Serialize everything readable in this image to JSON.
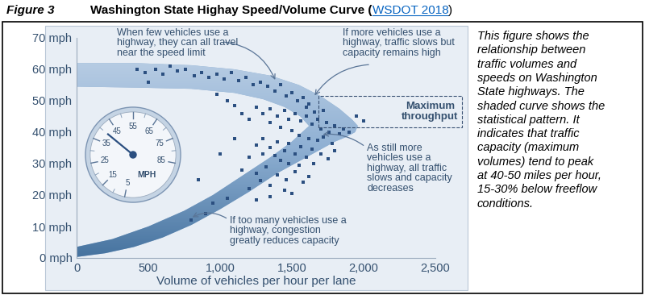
{
  "header": {
    "label": "Figure 3",
    "title": "Washington State Highay Speed/Volume Curve (WSDOT 2018)",
    "link": "WSDOT 2018"
  },
  "caption": "This figure shows the\nrelationship between\ntraffic volumes and\nspeeds on Washington\nState highways. The\nshaded curve shows the\nstatistical pattern. It\nindicates that traffic\ncapacity (maximum\nvolumes) tend to peak\nat 40-50 miles per hour,\n15-30% below freeflow\nconditions.",
  "chart_data": {
    "type": "scatter",
    "x_label": "Volume of vehicles per hour per lane",
    "xlim": [
      0,
      2500
    ],
    "xticks": [
      0,
      500,
      {
        "value": 1000,
        "label": "1,000"
      },
      {
        "value": 1500,
        "label": "1,500"
      },
      {
        "value": 2000,
        "label": "2,000"
      },
      {
        "value": 2500,
        "label": "2,500"
      }
    ],
    "ylim": [
      0,
      70
    ],
    "yticks": [
      {
        "value": 0,
        "label": "0 mph"
      },
      {
        "value": 10,
        "label": "10 mph"
      },
      {
        "value": 20,
        "label": "20 mph"
      },
      {
        "value": 30,
        "label": "30 mph"
      },
      {
        "value": 40,
        "label": "40 mph"
      },
      {
        "value": 50,
        "label": "50 mph"
      },
      {
        "value": 60,
        "label": "60 mph"
      },
      {
        "value": 70,
        "label": "70 mph"
      }
    ],
    "grid": false,
    "color": "#2b4f80",
    "marker": "square",
    "x": [
      420,
      480,
      550,
      600,
      650,
      700,
      760,
      820,
      870,
      920,
      980,
      1030,
      1080,
      1130,
      1180,
      1230,
      1280,
      1330,
      1380,
      1420,
      1460,
      1500,
      1540,
      1580,
      1620,
      1250,
      1300,
      1350,
      1400,
      1450,
      1480,
      1520,
      1560,
      1600,
      1640,
      1680,
      1700,
      1740,
      1760,
      1800,
      1830,
      1860,
      1900,
      1350,
      1420,
      1500,
      1550,
      1620,
      1680,
      1720,
      1780,
      1200,
      1150,
      1100,
      1050,
      980,
      1600,
      1660,
      1720,
      1250,
      1300,
      1350,
      1400,
      1450,
      1480,
      1520,
      1560,
      1600,
      1640,
      1700,
      1750,
      1800,
      1420,
      1380,
      1300,
      1200,
      1480,
      1550,
      1650,
      1150,
      1250,
      1320,
      1400,
      1460,
      1520,
      1580,
      1350,
      1280,
      1450,
      1200,
      1500,
      1620,
      1050,
      1250,
      1350,
      900,
      800,
      950,
      850,
      1000,
      1100,
      1950,
      2000,
      500
    ],
    "values": [
      60,
      59,
      60,
      58.5,
      61,
      59.5,
      60,
      58,
      59,
      57.5,
      58.5,
      57,
      59,
      56.5,
      57.5,
      55,
      56,
      54.5,
      53,
      55,
      51.5,
      52.5,
      50,
      51,
      49,
      48,
      46,
      47.5,
      45,
      47,
      44,
      46,
      43.5,
      45,
      42.5,
      44,
      41,
      43,
      40,
      42,
      39.5,
      41,
      40,
      43,
      41.5,
      40.5,
      39,
      38,
      37.5,
      38.5,
      36.5,
      44,
      46,
      48.5,
      50,
      52,
      48,
      46.5,
      47,
      36,
      38,
      35,
      37,
      34,
      36.5,
      33,
      35.5,
      32,
      34.5,
      33,
      31.5,
      34,
      31,
      32.5,
      33,
      32,
      30,
      29.5,
      30,
      28,
      27,
      29,
      26.5,
      25,
      27.5,
      24,
      23,
      24.5,
      21.5,
      22,
      20.5,
      26,
      19,
      18.5,
      19.5,
      14,
      12,
      17.5,
      25,
      33,
      38,
      45,
      43.5,
      56
    ],
    "band": {
      "color": "#8fb0d3",
      "x": [
        0,
        400,
        800,
        1100,
        1350,
        1550,
        1700,
        1830,
        1920,
        1960,
        1940,
        1880,
        1800,
        1600,
        1400,
        1200,
        1000,
        800,
        600,
        400,
        200,
        0,
        0,
        250,
        500,
        750,
        950,
        1150,
        1350,
        1500,
        1620,
        1560,
        1450,
        1300,
        1100,
        800,
        400,
        0
      ],
      "y": [
        62,
        62,
        61.3,
        60,
        58,
        55,
        51.5,
        47.5,
        44,
        42,
        40,
        38.5,
        37,
        32,
        27,
        21,
        15.5,
        10.5,
        6.5,
        3.5,
        1.5,
        0.3,
        3.5,
        6,
        10,
        15,
        20,
        26,
        32,
        37,
        42,
        45,
        48,
        50.5,
        52.5,
        53.8,
        54.2,
        54.5
      ]
    },
    "annotations": {
      "free_flow": "When few vehicles use a\nhighway, they can all travel\nnear the speed limit",
      "slowing": "If more vehicles use a\nhighway, traffic slows but\ncapacity remains high",
      "max_throughput": "Maximum\nthroughput",
      "decreasing": "As still more\nvehicles use a\nhighway, all traffic\nslows and capacity\ndecreases",
      "congestion": "If too many vehicles use a\nhighway, congestion\ngreatly reduces capacity"
    },
    "speedometer": {
      "labels": [
        5,
        15,
        25,
        35,
        45,
        55,
        65,
        75,
        85
      ],
      "unit": "MPH",
      "needle": 40
    }
  }
}
